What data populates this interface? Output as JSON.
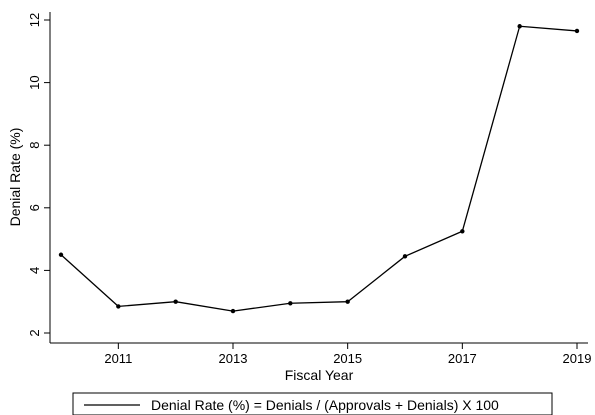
{
  "chart_data": {
    "type": "line",
    "xlabel": "Fiscal Year",
    "ylabel": "Denial Rate (%)",
    "xlim": [
      2010,
      2019
    ],
    "ylim": [
      2,
      12
    ],
    "x_ticks": [
      2011,
      2013,
      2015,
      2017,
      2019
    ],
    "y_ticks": [
      2,
      4,
      6,
      8,
      10,
      12
    ],
    "grid": false,
    "legend_placement": "bottom",
    "series": [
      {
        "name": "Denial Rate (%) = Denials / (Approvals + Denials) X 100",
        "x": [
          2010,
          2011,
          2012,
          2013,
          2014,
          2015,
          2016,
          2017,
          2018,
          2019
        ],
        "y": [
          4.5,
          2.85,
          3.0,
          2.7,
          2.95,
          3.0,
          4.45,
          5.25,
          11.8,
          11.65
        ],
        "color": "#000000"
      }
    ]
  }
}
